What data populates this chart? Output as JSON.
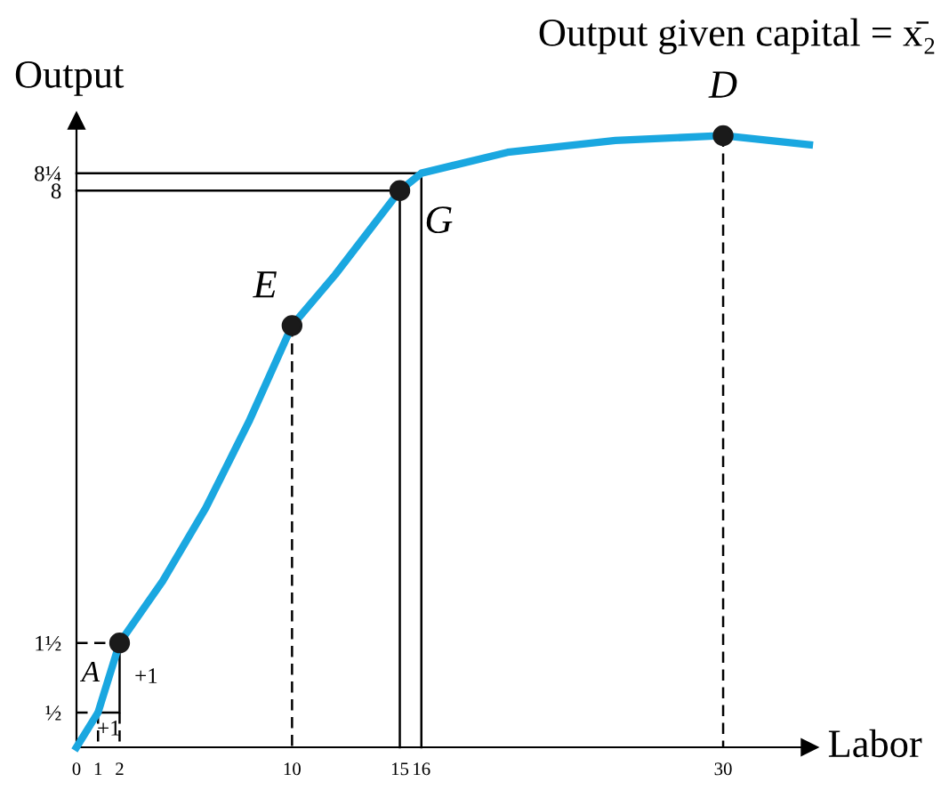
{
  "chart_data": {
    "type": "line",
    "title": "Output given capital = x̄₂",
    "xlabel": "Labor",
    "ylabel": "Output",
    "xlim": [
      0,
      34
    ],
    "ylim": [
      0,
      9
    ],
    "xticks": [
      0,
      1,
      2,
      10,
      15,
      16,
      30
    ],
    "yticks": [
      {
        "value": 0.5,
        "label": "½"
      },
      {
        "value": 1.5,
        "label": "1½"
      },
      8,
      {
        "value": 8.25,
        "label": "8¼"
      }
    ],
    "grid": false,
    "legend": false,
    "series": [
      {
        "color": "#1aa7e0",
        "x": [
          0,
          1,
          2,
          4,
          6,
          8,
          10,
          12,
          15,
          16,
          20,
          25,
          30,
          34
        ],
        "values": [
          0,
          0.5,
          1.5,
          2.39,
          3.44,
          4.68,
          6.06,
          6.79,
          8,
          8.25,
          8.55,
          8.72,
          8.79,
          8.66
        ]
      },
      {
        "type": "scatter",
        "color": "#1a1a1a",
        "marker": "circle",
        "x": [
          2,
          10,
          15,
          30
        ],
        "values": [
          1.5,
          6.06,
          8,
          8.79
        ]
      },
      {
        "type": "line",
        "color": "#000000",
        "line_style": "dashed",
        "x": [
          0,
          1
        ],
        "values": [
          0.5,
          0.5
        ]
      },
      {
        "type": "line",
        "color": "#000000",
        "line_style": "solid",
        "x": [
          1,
          2,
          2
        ],
        "values": [
          0.5,
          0.5,
          1.5
        ]
      },
      {
        "type": "line",
        "color": "#000000",
        "line_style": "dashed",
        "x": [
          1,
          1
        ],
        "values": [
          0.5,
          0
        ]
      },
      {
        "type": "line",
        "color": "#000000",
        "line_style": "dashed",
        "x": [
          0,
          2
        ],
        "values": [
          1.5,
          1.5
        ]
      },
      {
        "type": "line",
        "color": "#000000",
        "line_style": "dashed",
        "x": [
          2,
          2
        ],
        "values": [
          0.5,
          0
        ]
      },
      {
        "type": "line",
        "color": "#000000",
        "line_style": "dashed",
        "x": [
          10,
          10
        ],
        "values": [
          6.06,
          0
        ]
      },
      {
        "type": "line",
        "color": "#000000",
        "line_style": "solid",
        "x": [
          0,
          15,
          15
        ],
        "values": [
          8,
          8,
          0
        ]
      },
      {
        "type": "line",
        "color": "#000000",
        "line_style": "solid",
        "x": [
          0,
          16,
          16
        ],
        "values": [
          8.25,
          8.25,
          0
        ]
      },
      {
        "type": "line",
        "color": "#000000",
        "line_style": "dashed",
        "x": [
          30,
          30
        ],
        "values": [
          8.79,
          0
        ]
      }
    ],
    "annotations": [
      {
        "text": "A",
        "x": 1,
        "y": 0.5
      },
      {
        "text": "E",
        "x": 10,
        "y": 6.06
      },
      {
        "text": "G",
        "x": 15,
        "y": 8
      },
      {
        "text": "D",
        "x": 30,
        "y": 8.79
      },
      {
        "text": "+1",
        "x": 1.5,
        "y": 0.5
      },
      {
        "text": "+1",
        "x": 2,
        "y": 1
      }
    ]
  }
}
